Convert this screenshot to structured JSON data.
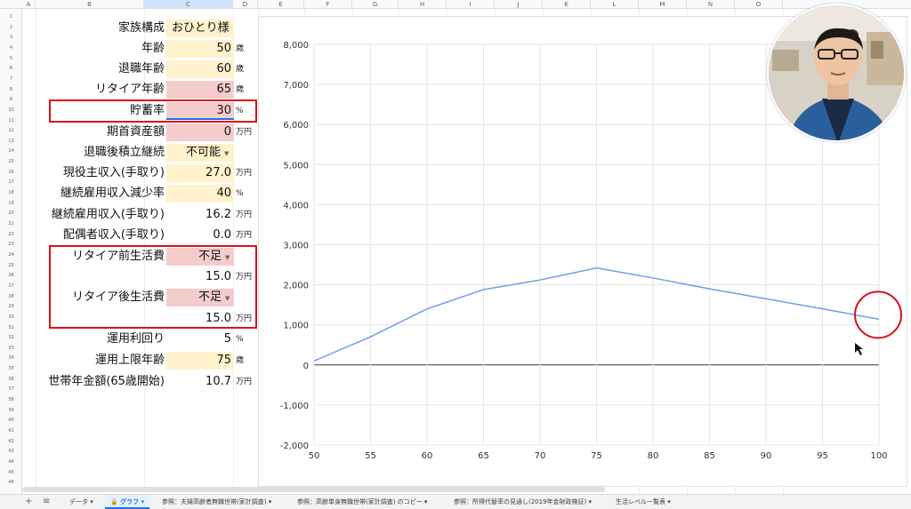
{
  "columns": [
    "A",
    "B",
    "C",
    "D",
    "E",
    "F",
    "G",
    "H",
    "I",
    "J",
    "K",
    "L",
    "M",
    "N",
    "O"
  ],
  "row_numbers": [
    "1",
    "2",
    "3",
    "4",
    "5",
    "6",
    "7",
    "8",
    "9",
    "10",
    "11",
    "12",
    "13",
    "14",
    "15",
    "16",
    "17",
    "18",
    "19",
    "20",
    "21",
    "22",
    "23",
    "24",
    "25",
    "26",
    "27",
    "28",
    "29",
    "30",
    "31",
    "32",
    "33",
    "34",
    "35",
    "36",
    "37",
    "38",
    "39",
    "40",
    "41",
    "42",
    "43",
    "44",
    "45",
    "46"
  ],
  "form": {
    "family": {
      "label": "家族構成",
      "value": "おひとり様"
    },
    "age": {
      "label": "年齢",
      "value": "50",
      "unit": "歳"
    },
    "retire_age": {
      "label": "退職年齢",
      "value": "60",
      "unit": "歳"
    },
    "retire_age2": {
      "label": "リタイア年齢",
      "value": "65",
      "unit": "歳"
    },
    "saving_rate": {
      "label": "貯蓄率",
      "value": "30",
      "unit": "%"
    },
    "initial_asset": {
      "label": "期首資産額",
      "value": "0",
      "unit": "万円"
    },
    "continue_saving": {
      "label": "退職後積立継続",
      "value": "不可能"
    },
    "income": {
      "label": "現役主収入(手取り)",
      "value": "27.0",
      "unit": "万円"
    },
    "rehire_cut": {
      "label": "継続雇用収入減少率",
      "value": "40",
      "unit": "%"
    },
    "rehire_income": {
      "label": "継続雇用収入(手取り)",
      "value": "16.2",
      "unit": "万円"
    },
    "spouse_income": {
      "label": "配偶者収入(手取り)",
      "value": "0.0",
      "unit": "万円"
    },
    "pre_living": {
      "label": "リタイア前生活費",
      "value": "不足",
      "amount": "15.0",
      "unit": "万円"
    },
    "post_living": {
      "label": "リタイア後生活費",
      "value": "不足",
      "amount": "15.0",
      "unit": "万円"
    },
    "yield": {
      "label": "運用利回り",
      "value": "5",
      "unit": "%"
    },
    "max_age": {
      "label": "運用上限年齢",
      "value": "75",
      "unit": "歳"
    },
    "pension": {
      "label": "世帯年金額(65歳開始)",
      "value": "10.7",
      "unit": "万円"
    }
  },
  "chart_data": {
    "type": "line",
    "x": [
      50,
      55,
      60,
      65,
      70,
      75,
      80,
      85,
      90,
      95,
      100
    ],
    "series": [
      {
        "values": [
          100,
          700,
          1400,
          1880,
          2120,
          2420,
          2170,
          1900,
          1650,
          1400,
          1140
        ]
      }
    ],
    "xlim": [
      50,
      100
    ],
    "ylim": [
      -2000,
      8000
    ],
    "xticks": [
      "50",
      "55",
      "60",
      "65",
      "70",
      "75",
      "80",
      "85",
      "90",
      "95",
      "100"
    ],
    "yticks": [
      "-2,000",
      "-1,000",
      "0",
      "1,000",
      "2,000",
      "3,000",
      "4,000",
      "5,000",
      "6,000",
      "7,000",
      "8,000"
    ],
    "grid": true,
    "series_color": "#6d9eeb",
    "annotation_color": "#d9111c"
  },
  "tabs": [
    {
      "label": "データ",
      "active": false
    },
    {
      "label": "グラフ",
      "active": true
    },
    {
      "label": "参照：夫婦高齢者無職世帯(家計調査)",
      "active": false
    },
    {
      "label": "参照：高齢単身無職世帯(家計調査) のコピー",
      "active": false
    },
    {
      "label": "参照：所得代替率の見通し(2019年金財政検証)",
      "active": false
    },
    {
      "label": "生活レベル一覧表",
      "active": false
    }
  ]
}
